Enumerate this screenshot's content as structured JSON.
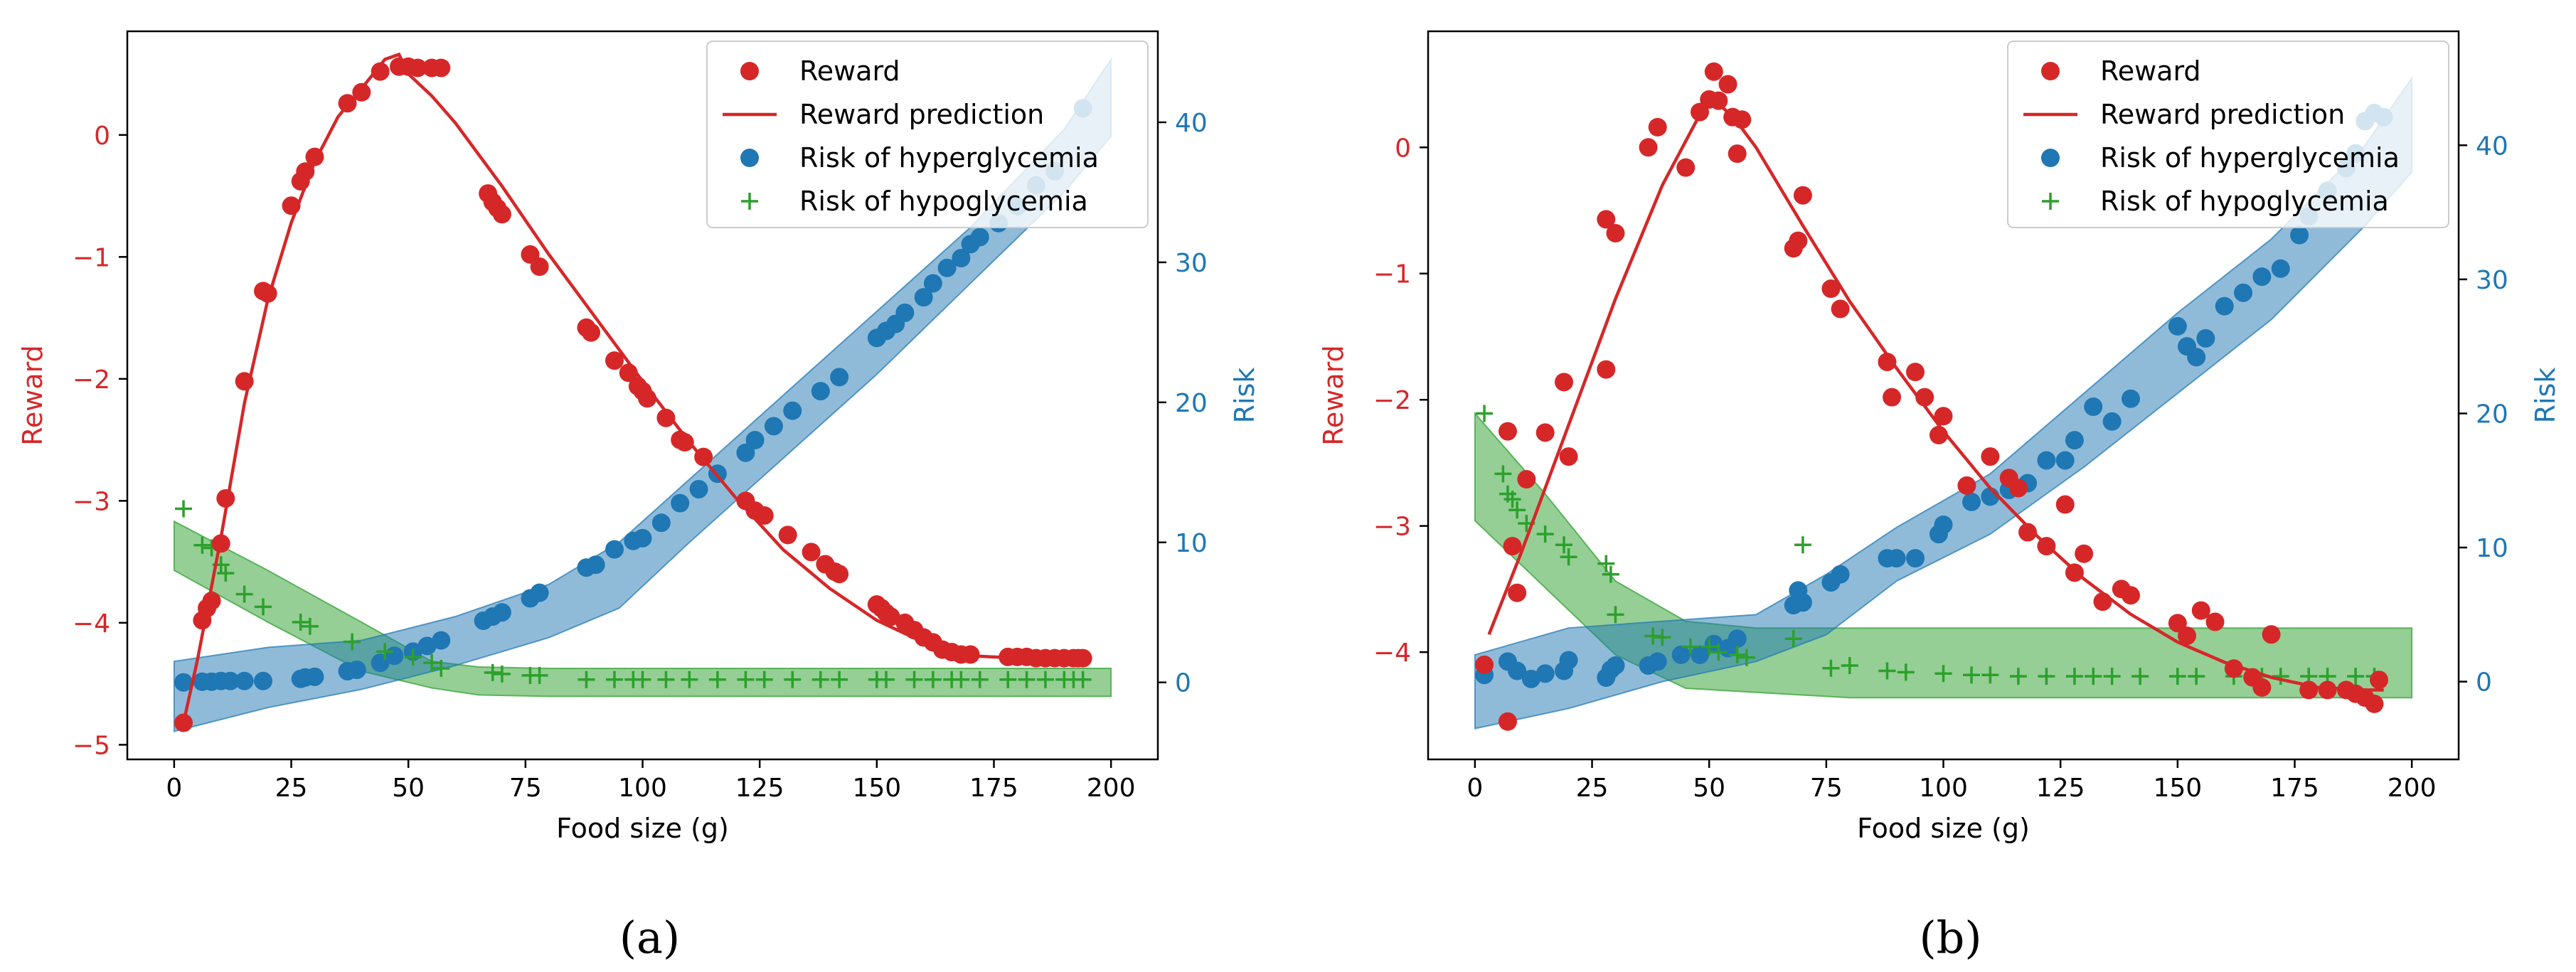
{
  "colors": {
    "reward": "#d62728",
    "hyper": "#1f77b4",
    "hypo": "#2ca02c",
    "axis": "#000000"
  },
  "chart_data": [
    {
      "type": "scatter",
      "subfigure_label": "(a)",
      "xlabel": "Food size (g)",
      "ylabel_left": "Reward",
      "ylabel_right": "Risk",
      "xlim": [
        -10,
        210
      ],
      "ylim_left": [
        -5.12,
        0.85
      ],
      "ylim_right": [
        -5.5,
        46.5
      ],
      "xticks": [
        0,
        25,
        50,
        75,
        100,
        125,
        150,
        175,
        200
      ],
      "xtick_labels": [
        "0",
        "25",
        "50",
        "75",
        "100",
        "125",
        "150",
        "175",
        "200"
      ],
      "yticks_left": [
        0,
        -1,
        -2,
        -3,
        -4,
        -5
      ],
      "ytick_labels_left": [
        "0",
        "−1",
        "−2",
        "−3",
        "−4",
        "−5"
      ],
      "yticks_right": [
        0,
        10,
        20,
        30,
        40
      ],
      "ytick_labels_right": [
        "0",
        "10",
        "20",
        "30",
        "40"
      ],
      "legend": {
        "position": "top-right",
        "entries": [
          "Reward",
          "Reward prediction",
          "Risk of hyperglycemia",
          "Risk of hypoglycemia"
        ]
      },
      "reward_points": {
        "x": [
          2,
          6,
          7,
          8,
          10,
          11,
          15,
          19,
          20,
          25,
          27,
          28,
          30,
          37,
          40,
          44,
          48,
          50,
          52,
          55,
          57,
          67,
          68,
          69,
          70,
          76,
          78,
          88,
          89,
          94,
          97,
          99,
          100,
          101,
          105,
          108,
          109,
          113,
          122,
          124,
          126,
          131,
          136,
          139,
          141,
          142,
          150,
          151,
          152,
          153,
          156,
          158,
          160,
          162,
          164,
          166,
          168,
          170,
          178,
          180,
          182,
          184,
          186,
          188,
          190,
          192,
          193,
          194
        ],
        "y": [
          -4.82,
          -3.98,
          -3.88,
          -3.82,
          -3.35,
          -2.98,
          -2.02,
          -1.28,
          -1.3,
          -0.58,
          -0.38,
          -0.3,
          -0.18,
          0.26,
          0.35,
          0.52,
          0.56,
          0.56,
          0.55,
          0.55,
          0.55,
          -0.48,
          -0.55,
          -0.6,
          -0.65,
          -0.98,
          -1.08,
          -1.58,
          -1.62,
          -1.85,
          -1.95,
          -2.06,
          -2.1,
          -2.16,
          -2.32,
          -2.5,
          -2.52,
          -2.64,
          -3.0,
          -3.08,
          -3.12,
          -3.28,
          -3.42,
          -3.52,
          -3.58,
          -3.6,
          -3.85,
          -3.88,
          -3.92,
          -3.95,
          -4.0,
          -4.06,
          -4.12,
          -4.16,
          -4.22,
          -4.24,
          -4.26,
          -4.26,
          -4.28,
          -4.28,
          -4.28,
          -4.29,
          -4.29,
          -4.29,
          -4.29,
          -4.29,
          -4.29,
          -4.29
        ]
      },
      "reward_prediction": {
        "x": [
          2,
          5,
          10,
          15,
          20,
          25,
          30,
          35,
          40,
          45,
          48,
          50,
          55,
          60,
          70,
          80,
          90,
          100,
          110,
          120,
          130,
          140,
          150,
          160,
          170,
          180,
          190,
          194
        ],
        "y": [
          -4.82,
          -4.3,
          -3.3,
          -2.2,
          -1.35,
          -0.72,
          -0.22,
          0.15,
          0.38,
          0.62,
          0.66,
          0.5,
          0.32,
          0.1,
          -0.42,
          -0.98,
          -1.5,
          -2.02,
          -2.52,
          -2.98,
          -3.4,
          -3.72,
          -3.98,
          -4.16,
          -4.27,
          -4.29,
          -4.29,
          -4.29
        ]
      },
      "hyper_points": {
        "x": [
          2,
          6,
          8,
          10,
          12,
          15,
          19,
          27,
          28,
          30,
          37,
          39,
          44,
          47,
          51,
          54,
          57,
          66,
          68,
          70,
          76,
          78,
          88,
          90,
          94,
          98,
          100,
          104,
          108,
          112,
          116,
          122,
          124,
          128,
          132,
          138,
          142,
          150,
          152,
          154,
          156,
          160,
          162,
          165,
          168,
          170,
          172,
          176,
          180,
          184,
          188,
          194
        ],
        "y": [
          0.0,
          0.05,
          0.05,
          0.1,
          0.1,
          0.1,
          0.1,
          0.25,
          0.35,
          0.4,
          0.8,
          0.9,
          1.4,
          1.9,
          2.2,
          2.6,
          3.0,
          4.4,
          4.7,
          5.0,
          6.0,
          6.4,
          8.2,
          8.4,
          9.5,
          10.1,
          10.3,
          11.4,
          12.8,
          13.8,
          14.9,
          16.4,
          17.3,
          18.3,
          19.4,
          20.8,
          21.8,
          24.6,
          25.1,
          25.6,
          26.4,
          27.5,
          28.5,
          29.6,
          30.3,
          31.3,
          31.8,
          32.8,
          34.0,
          35.5,
          36.5,
          41.0
        ]
      },
      "hyper_band": {
        "x": [
          0,
          20,
          40,
          60,
          80,
          95,
          110,
          130,
          150,
          170,
          190,
          200
        ],
        "lower": [
          -3.5,
          -1.8,
          -0.5,
          1.2,
          3.2,
          5.3,
          10.0,
          16.0,
          22.0,
          28.5,
          35.0,
          39.0
        ],
        "upper": [
          1.5,
          2.5,
          3.0,
          4.7,
          7.0,
          10.0,
          14.5,
          20.5,
          26.5,
          32.5,
          39.5,
          44.5
        ]
      },
      "hypo_points": {
        "x": [
          2,
          6,
          8,
          10,
          11,
          15,
          19,
          27,
          29,
          38,
          45,
          51,
          55,
          57,
          68,
          70,
          76,
          78,
          88,
          94,
          98,
          100,
          105,
          110,
          116,
          122,
          126,
          132,
          138,
          142,
          150,
          152,
          158,
          162,
          166,
          168,
          172,
          178,
          182,
          186,
          190,
          192,
          194
        ],
        "y": [
          12.4,
          9.8,
          9.6,
          8.4,
          7.8,
          6.3,
          5.4,
          4.3,
          4.0,
          2.9,
          2.2,
          1.8,
          1.4,
          1.0,
          0.7,
          0.6,
          0.5,
          0.5,
          0.2,
          0.2,
          0.2,
          0.2,
          0.2,
          0.2,
          0.2,
          0.2,
          0.2,
          0.2,
          0.2,
          0.2,
          0.2,
          0.2,
          0.2,
          0.2,
          0.2,
          0.2,
          0.2,
          0.2,
          0.2,
          0.2,
          0.2,
          0.2,
          0.2
        ]
      },
      "hypo_band": {
        "x": [
          0,
          20,
          40,
          55,
          65,
          80,
          100,
          125,
          150,
          175,
          200
        ],
        "lower": [
          8.0,
          4.3,
          0.8,
          -0.4,
          -0.9,
          -1.0,
          -1.0,
          -1.0,
          -1.0,
          -1.0,
          -1.0
        ],
        "upper": [
          11.5,
          8.0,
          4.3,
          1.5,
          1.1,
          1.0,
          1.0,
          1.0,
          1.0,
          1.0,
          1.0
        ]
      }
    },
    {
      "type": "scatter",
      "subfigure_label": "(b)",
      "xlabel": "Food size (g)",
      "ylabel_left": "Reward",
      "ylabel_right": "Risk",
      "xlim": [
        -10,
        210
      ],
      "ylim_left": [
        -4.85,
        0.92
      ],
      "ylim_right": [
        -5.8,
        48.5
      ],
      "xticks": [
        0,
        25,
        50,
        75,
        100,
        125,
        150,
        175,
        200
      ],
      "xtick_labels": [
        "0",
        "25",
        "50",
        "75",
        "100",
        "125",
        "150",
        "175",
        "200"
      ],
      "yticks_left": [
        0,
        -1,
        -2,
        -3,
        -4
      ],
      "ytick_labels_left": [
        "0",
        "−1",
        "−2",
        "−3",
        "−4"
      ],
      "yticks_right": [
        0,
        10,
        20,
        30,
        40
      ],
      "ytick_labels_right": [
        "0",
        "10",
        "20",
        "30",
        "40"
      ],
      "legend": {
        "position": "top-right",
        "entries": [
          "Reward",
          "Reward prediction",
          "Risk of hyperglycemia",
          "Risk of hypoglycemia"
        ]
      },
      "reward_points": {
        "x": [
          2,
          7,
          7,
          8,
          9,
          11,
          15,
          19,
          20,
          28,
          28,
          30,
          37,
          39,
          45,
          48,
          50,
          51,
          52,
          54,
          55,
          56,
          57,
          68,
          69,
          70,
          76,
          78,
          88,
          89,
          94,
          96,
          99,
          100,
          105,
          110,
          114,
          116,
          118,
          122,
          126,
          128,
          130,
          134,
          138,
          140,
          150,
          152,
          155,
          158,
          162,
          166,
          168,
          170,
          178,
          182,
          186,
          188,
          190,
          192,
          193
        ],
        "y": [
          -4.1,
          -4.55,
          -2.25,
          -3.16,
          -3.53,
          -2.63,
          -2.26,
          -1.86,
          -2.45,
          -0.57,
          -1.76,
          -0.68,
          0.0,
          0.16,
          -0.16,
          0.28,
          0.38,
          0.6,
          0.37,
          0.5,
          0.24,
          -0.05,
          0.22,
          -0.8,
          -0.74,
          -0.38,
          -1.12,
          -1.28,
          -1.7,
          -1.98,
          -1.78,
          -1.98,
          -2.28,
          -2.13,
          -2.68,
          -2.45,
          -2.62,
          -2.7,
          -3.05,
          -3.16,
          -2.83,
          -3.37,
          -3.22,
          -3.6,
          -3.5,
          -3.55,
          -3.77,
          -3.87,
          -3.67,
          -3.76,
          -4.13,
          -4.2,
          -4.28,
          -3.86,
          -4.3,
          -4.3,
          -4.3,
          -4.33,
          -4.36,
          -4.41,
          -4.22
        ]
      },
      "reward_prediction": {
        "x": [
          3,
          10,
          20,
          30,
          40,
          45,
          50,
          55,
          60,
          70,
          80,
          90,
          100,
          110,
          120,
          130,
          140,
          150,
          160,
          170,
          180,
          190,
          194
        ],
        "y": [
          -3.86,
          -3.2,
          -2.2,
          -1.2,
          -0.3,
          0.05,
          0.4,
          0.25,
          0.0,
          -0.62,
          -1.22,
          -1.75,
          -2.25,
          -2.7,
          -3.08,
          -3.42,
          -3.7,
          -3.92,
          -4.08,
          -4.2,
          -4.28,
          -4.3,
          -4.3
        ]
      },
      "hyper_points": {
        "x": [
          2,
          7,
          9,
          12,
          15,
          19,
          20,
          28,
          29,
          30,
          37,
          39,
          44,
          48,
          51,
          54,
          56,
          68,
          69,
          70,
          76,
          78,
          88,
          90,
          94,
          99,
          100,
          106,
          110,
          114,
          118,
          122,
          126,
          128,
          132,
          136,
          140,
          150,
          152,
          154,
          156,
          160,
          164,
          168,
          172,
          176,
          178,
          182,
          186,
          188,
          190,
          192,
          194
        ],
        "y": [
          0.5,
          1.5,
          0.8,
          0.2,
          0.6,
          0.8,
          1.6,
          0.3,
          0.9,
          1.2,
          1.2,
          1.5,
          2.0,
          2.0,
          2.8,
          2.5,
          3.2,
          5.7,
          6.8,
          5.9,
          7.4,
          8.0,
          9.2,
          9.2,
          9.2,
          11.0,
          11.7,
          13.4,
          13.8,
          14.3,
          14.8,
          16.5,
          16.5,
          18.0,
          20.5,
          19.4,
          21.1,
          26.5,
          25.0,
          24.2,
          25.6,
          28.0,
          29.0,
          30.2,
          30.8,
          33.3,
          34.7,
          36.6,
          38.3,
          39.4,
          41.8,
          42.4,
          42.1
        ]
      },
      "hyper_band": {
        "x": [
          0,
          20,
          40,
          60,
          75,
          90,
          110,
          130,
          150,
          170,
          190,
          200
        ],
        "lower": [
          -3.5,
          -2.0,
          0.0,
          1.5,
          3.5,
          7.5,
          11.0,
          16.0,
          21.5,
          27.0,
          34.0,
          38.0
        ],
        "upper": [
          2.0,
          4.0,
          4.5,
          5.0,
          8.0,
          11.5,
          15.5,
          21.5,
          27.5,
          33.0,
          40.0,
          45.0
        ]
      },
      "hypo_points": {
        "x": [
          2,
          6,
          7,
          8,
          9,
          11,
          15,
          19,
          20,
          28,
          29,
          30,
          38,
          40,
          46,
          50,
          52,
          56,
          58,
          68,
          70,
          76,
          80,
          88,
          92,
          100,
          106,
          110,
          116,
          122,
          128,
          132,
          136,
          142,
          150,
          154,
          162,
          168,
          172,
          178,
          182,
          188,
          192
        ],
        "y": [
          20.0,
          15.5,
          14.0,
          13.6,
          12.8,
          11.8,
          11.0,
          10.2,
          9.3,
          8.8,
          8.0,
          5.0,
          3.4,
          3.3,
          2.6,
          2.6,
          2.2,
          2.0,
          1.8,
          3.2,
          10.2,
          1.0,
          1.2,
          0.8,
          0.7,
          0.6,
          0.5,
          0.5,
          0.4,
          0.4,
          0.4,
          0.4,
          0.4,
          0.4,
          0.4,
          0.4,
          0.4,
          0.4,
          0.4,
          0.4,
          0.4,
          0.4,
          0.4
        ]
      },
      "hypo_band": {
        "x": [
          0,
          15,
          30,
          45,
          60,
          80,
          100,
          125,
          150,
          175,
          200
        ],
        "lower": [
          12.0,
          7.0,
          2.0,
          -0.5,
          -0.8,
          -1.2,
          -1.2,
          -1.2,
          -1.2,
          -1.2,
          -1.2
        ],
        "upper": [
          20.0,
          14.0,
          7.5,
          4.5,
          4.0,
          4.0,
          4.0,
          4.0,
          4.0,
          4.0,
          4.0
        ]
      }
    }
  ]
}
